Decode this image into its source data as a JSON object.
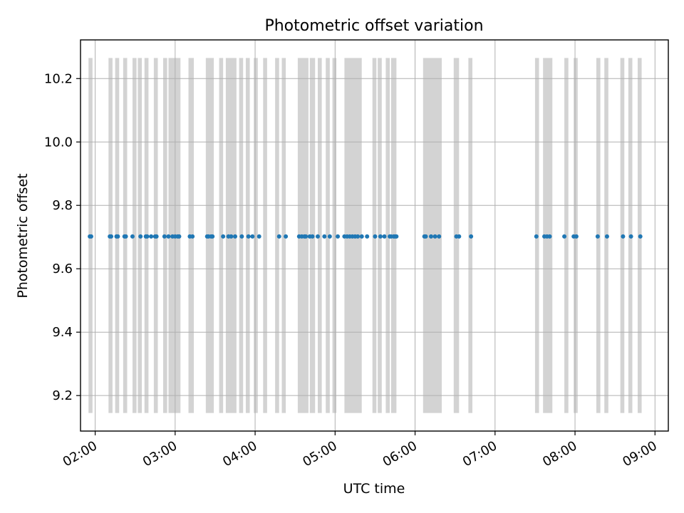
{
  "chart_data": {
    "type": "scatter",
    "title": "Photometric offset variation",
    "xlabel": "UTC time",
    "ylabel": "Photometric offset",
    "xlim": [
      "01:49",
      "09:10"
    ],
    "ylim": [
      9.088,
      10.322
    ],
    "x_ticks": [
      "02:00",
      "03:00",
      "04:00",
      "05:00",
      "06:00",
      "07:00",
      "08:00",
      "09:00"
    ],
    "y_ticks": [
      "9.2",
      "9.4",
      "9.6",
      "9.8",
      "10.0",
      "10.2"
    ],
    "grid": true,
    "colors": {
      "points": "#1f77b4",
      "shading": "#d3d3d3",
      "grid": "#b0b0b0"
    },
    "shaded_ranges": {
      "ymin": 9.145,
      "ymax": 10.265,
      "spans": [
        [
          "01:55",
          "01:58"
        ],
        [
          "02:10",
          "02:13"
        ],
        [
          "02:15",
          "02:18"
        ],
        [
          "02:21",
          "02:24"
        ],
        [
          "02:28",
          "02:31"
        ],
        [
          "02:32",
          "02:35"
        ],
        [
          "02:37",
          "02:40"
        ],
        [
          "02:44",
          "02:47"
        ],
        [
          "02:51",
          "02:54"
        ],
        [
          "02:55",
          "03:04"
        ],
        [
          "03:10",
          "03:14"
        ],
        [
          "03:23",
          "03:29"
        ],
        [
          "03:33",
          "03:36"
        ],
        [
          "03:38",
          "03:46"
        ],
        [
          "03:48",
          "03:51"
        ],
        [
          "03:53",
          "03:56"
        ],
        [
          "03:59",
          "04:02"
        ],
        [
          "04:06",
          "04:09"
        ],
        [
          "04:15",
          "04:18"
        ],
        [
          "04:20",
          "04:23"
        ],
        [
          "04:32",
          "04:40"
        ],
        [
          "04:41",
          "04:45"
        ],
        [
          "04:47",
          "04:50"
        ],
        [
          "04:53",
          "04:56"
        ],
        [
          "04:58",
          "05:01"
        ],
        [
          "05:07",
          "05:20"
        ],
        [
          "05:28",
          "05:31"
        ],
        [
          "05:32",
          "05:35"
        ],
        [
          "05:38",
          "05:41"
        ],
        [
          "05:42",
          "05:46"
        ],
        [
          "06:06",
          "06:20"
        ],
        [
          "06:29",
          "06:33"
        ],
        [
          "06:40",
          "06:43"
        ],
        [
          "07:30",
          "07:33"
        ],
        [
          "07:36",
          "07:43"
        ],
        [
          "07:52",
          "07:55"
        ],
        [
          "07:59",
          "08:02"
        ],
        [
          "08:16",
          "08:19"
        ],
        [
          "08:22",
          "08:25"
        ],
        [
          "08:34",
          "08:37"
        ],
        [
          "08:40",
          "08:43"
        ],
        [
          "08:47",
          "08:50"
        ]
      ]
    },
    "series": [
      {
        "x": [
          "01:56",
          "01:57",
          "02:11",
          "02:12",
          "02:16",
          "02:17",
          "02:22",
          "02:23",
          "02:28",
          "02:34",
          "02:38",
          "02:39",
          "02:42",
          "02:45",
          "02:46",
          "02:52",
          "02:55",
          "02:58",
          "03:00",
          "03:02",
          "03:03",
          "03:11",
          "03:13",
          "03:24",
          "03:25",
          "03:27",
          "03:28",
          "03:36",
          "03:40",
          "03:42",
          "03:45",
          "03:50",
          "03:55",
          "03:58",
          "04:03",
          "04:18",
          "04:23",
          "04:33",
          "04:35",
          "04:37",
          "04:38",
          "04:41",
          "04:43",
          "04:47",
          "04:52",
          "04:56",
          "05:02",
          "05:07",
          "05:09",
          "05:11",
          "05:13",
          "05:15",
          "05:17",
          "05:20",
          "05:24",
          "05:30",
          "05:34",
          "05:37",
          "05:41",
          "05:42",
          "05:44",
          "05:45",
          "05:46",
          "06:07",
          "06:08",
          "06:12",
          "06:15",
          "06:18",
          "06:31",
          "06:33",
          "06:42",
          "07:31",
          "07:37",
          "07:39",
          "07:41",
          "07:52",
          "07:59",
          "08:01",
          "08:17",
          "08:24",
          "08:36",
          "08:42",
          "08:49"
        ],
        "y": [
          9.702,
          9.702,
          9.702,
          9.702,
          9.702,
          9.702,
          9.702,
          9.702,
          9.702,
          9.702,
          9.702,
          9.702,
          9.702,
          9.702,
          9.702,
          9.702,
          9.702,
          9.702,
          9.702,
          9.702,
          9.702,
          9.702,
          9.702,
          9.702,
          9.702,
          9.702,
          9.702,
          9.702,
          9.702,
          9.702,
          9.702,
          9.702,
          9.702,
          9.702,
          9.702,
          9.702,
          9.702,
          9.702,
          9.702,
          9.702,
          9.702,
          9.702,
          9.702,
          9.702,
          9.702,
          9.702,
          9.702,
          9.702,
          9.702,
          9.702,
          9.702,
          9.702,
          9.702,
          9.702,
          9.702,
          9.702,
          9.702,
          9.702,
          9.702,
          9.702,
          9.702,
          9.702,
          9.702,
          9.702,
          9.702,
          9.702,
          9.702,
          9.702,
          9.702,
          9.702,
          9.702,
          9.702,
          9.702,
          9.702,
          9.702,
          9.702,
          9.702,
          9.702,
          9.702,
          9.702,
          9.702,
          9.702,
          9.702
        ]
      }
    ]
  }
}
